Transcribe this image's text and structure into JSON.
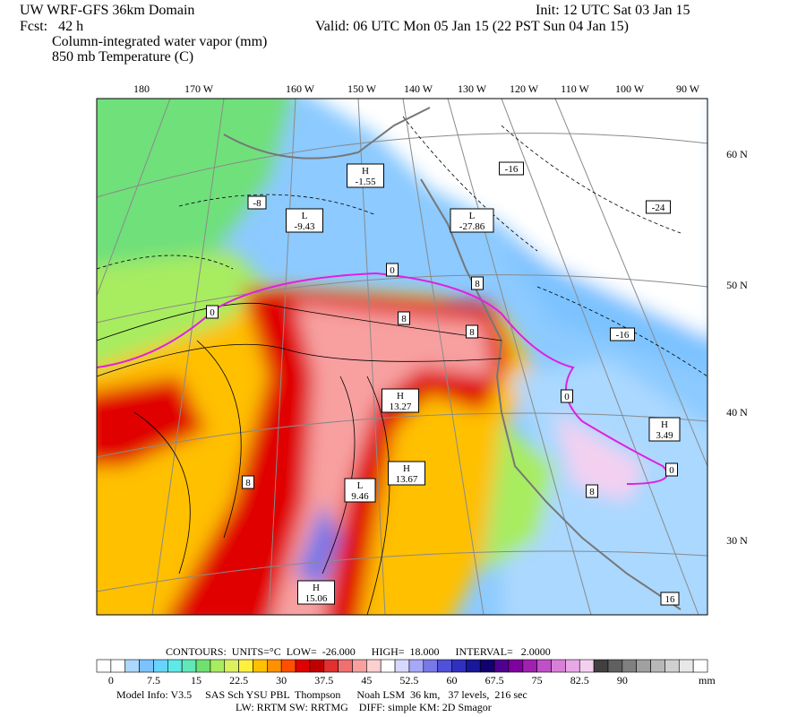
{
  "header": {
    "model": "UW WRF-GFS 36km Domain",
    "init": "Init: 12 UTC Sat 03 Jan 15",
    "forecast": "Fcst:   42 h",
    "valid": "Valid: 06 UTC Mon 05 Jan 15 (22 PST Sun 04 Jan 15)",
    "field": "Column-integrated water vapor (mm)",
    "contour_field": "850 mb Temperature (C)"
  },
  "map": {
    "longitude_labels": [
      "180",
      "170 W",
      "160 W",
      "150 W",
      "140 W",
      "130 W",
      "120 W",
      "110 W",
      "100 W",
      "90 W"
    ],
    "latitude_labels": [
      "60 N",
      "50 N",
      "40 N",
      "30 N"
    ],
    "labels": [
      [
        "H",
        "-1.55"
      ],
      [
        "-8"
      ],
      [
        "L",
        "-9.43"
      ],
      [
        "L",
        "-27.86"
      ],
      [
        "-16"
      ],
      [
        "-24"
      ],
      [
        "0"
      ],
      [
        "0"
      ],
      [
        "8"
      ],
      [
        "8"
      ],
      [
        "8"
      ],
      [
        "-16"
      ],
      [
        "H",
        "13.27"
      ],
      [
        "0"
      ],
      [
        "H",
        "3.49"
      ],
      [
        "0"
      ],
      [
        "8"
      ],
      [
        "H",
        "13.67"
      ],
      [
        "L",
        "9.46"
      ],
      [
        "8"
      ],
      [
        "H",
        "15.06"
      ],
      [
        "16"
      ]
    ]
  },
  "contours": "CONTOURS:  UNITS=°C  LOW=  -26.000      HIGH=  18.000      INTERVAL=   2.0000",
  "colorbar": {
    "labels": [
      "0",
      "7.5",
      "15",
      "22.5",
      "30",
      "37.5",
      "45",
      "52.5",
      "60",
      "67.5",
      "75",
      "82.5",
      "90"
    ],
    "unit": "mm",
    "colors": [
      "#ffffff",
      "#ffffff",
      "#aad8ff",
      "#7cc2ff",
      "#66d4ff",
      "#5ee8e8",
      "#60e8b8",
      "#70e070",
      "#a8ec60",
      "#dcf060",
      "#fff040",
      "#ffc000",
      "#ff9000",
      "#ff5000",
      "#e00000",
      "#c00000",
      "#e03030",
      "#f07070",
      "#f8a0a0",
      "#fcd0d0",
      "#ffffff",
      "#d8d8ff",
      "#a8a8f8",
      "#7878e8",
      "#5050d8",
      "#3030c0",
      "#181898",
      "#100070",
      "#500090",
      "#8000a0",
      "#a020b0",
      "#c050c8",
      "#d880d8",
      "#e8a8e8",
      "#f4d0f0",
      "#404040",
      "#606060",
      "#808080",
      "#a0a0a0",
      "#b8b8b8",
      "#d0d0d0",
      "#e8e8e8",
      "#ffffff"
    ]
  },
  "model_info": [
    "Model Info: V3.5     SAS Sch YSU PBL  Thompson      Noah LSM  36 km,   37 levels,  216 sec",
    "LW: RRTM SW: RRTMG    DIFF: simple KM: 2D Smagor"
  ]
}
